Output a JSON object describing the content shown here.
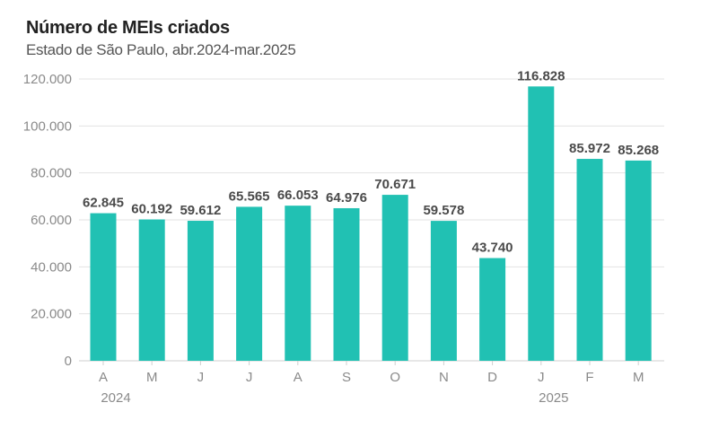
{
  "chart_data": {
    "type": "bar",
    "title": "Número de MEIs criados",
    "subtitle": "Estado de São Paulo, abr.2024-mar.2025",
    "categories": [
      "A",
      "M",
      "J",
      "J",
      "A",
      "S",
      "O",
      "N",
      "D",
      "J",
      "F",
      "M"
    ],
    "values": [
      62845,
      60192,
      59612,
      65565,
      66053,
      64976,
      70671,
      59578,
      43740,
      116828,
      85972,
      85268
    ],
    "data_labels": [
      "62.845",
      "60.192",
      "59.612",
      "65.565",
      "66.053",
      "64.976",
      "70.671",
      "59.578",
      "43.740",
      "116.828",
      "85.972",
      "85.268"
    ],
    "year_labels": [
      {
        "category_index": 0,
        "text": "2024"
      },
      {
        "category_index": 9,
        "text": "2025"
      }
    ],
    "yticks": [
      0,
      20000,
      40000,
      60000,
      80000,
      100000,
      120000
    ],
    "ytick_labels": [
      "0",
      "20.000",
      "40.000",
      "60.000",
      "80.000",
      "100.000",
      "120.000"
    ],
    "ylim": [
      0,
      120000
    ],
    "grid": true,
    "bar_color": "#21c1b3",
    "grid_color": "#e3e3e3"
  }
}
